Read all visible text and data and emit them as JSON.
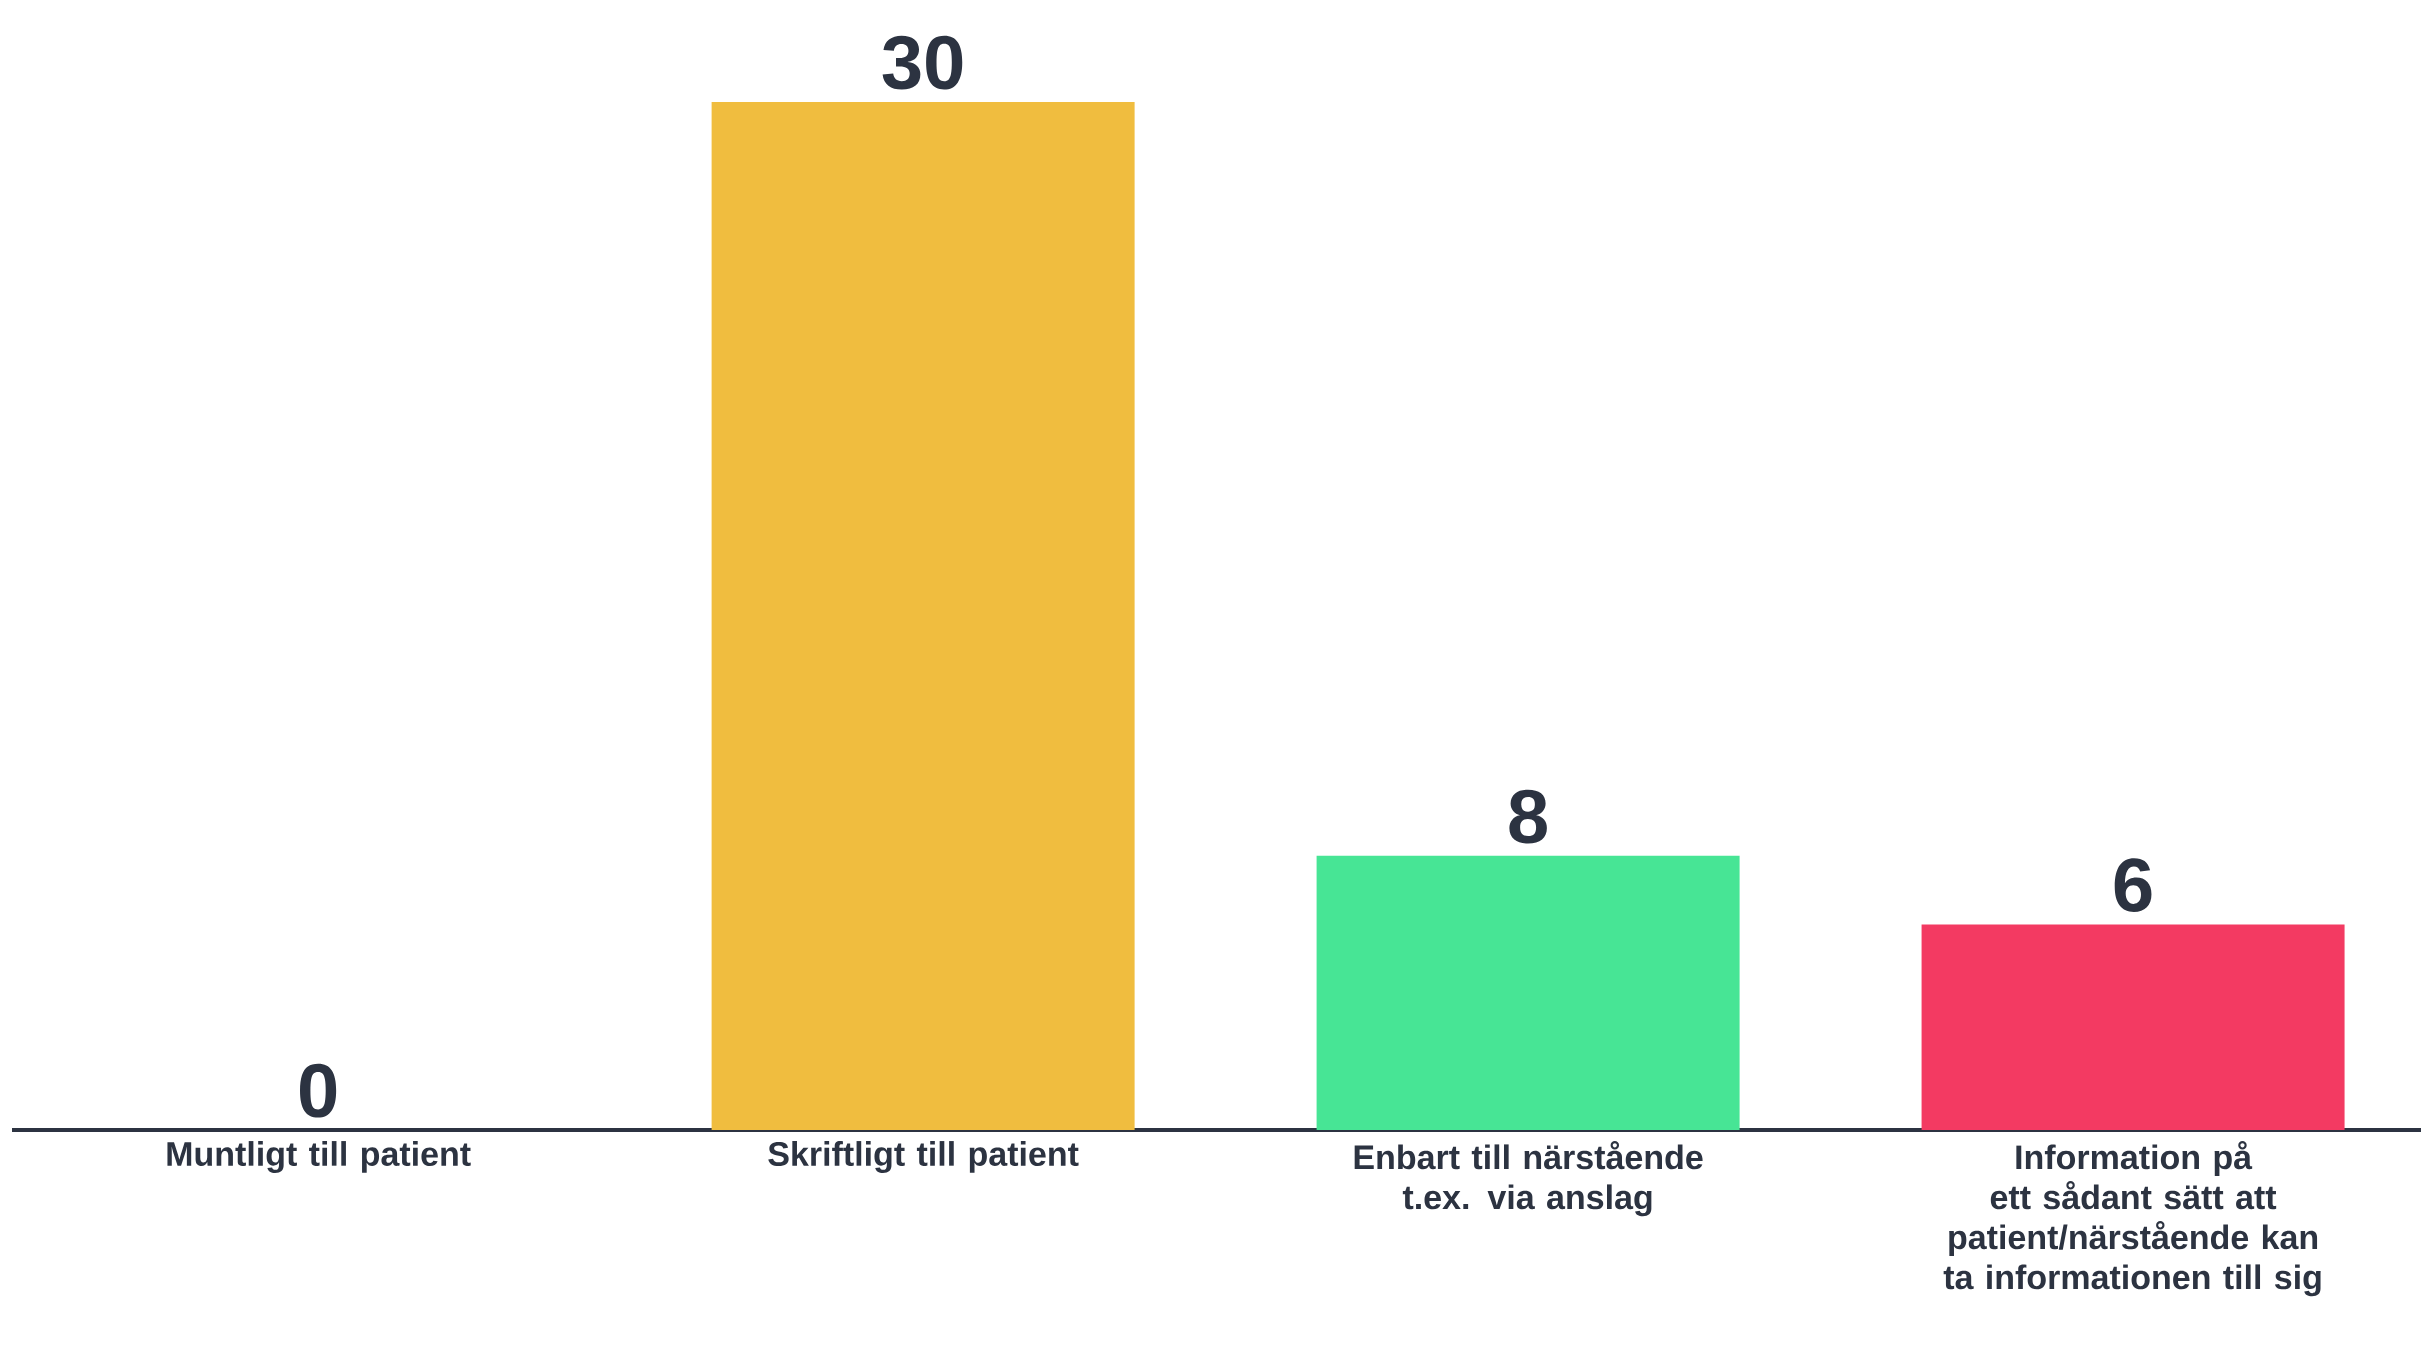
{
  "chart_data": {
    "type": "bar",
    "categories": [
      "Muntligt till patient",
      "Skriftligt till patient",
      "Enbart till närstående t.ex. via anslag",
      "Information på ett sådant sätt att patient/närstående kan ta informationen till sig"
    ],
    "values": [
      0,
      30,
      8,
      6
    ],
    "colors": [
      "#f0bd3f",
      "#f0bd3f",
      "#47e595",
      "#f33a62"
    ],
    "data_labels": true
  }
}
